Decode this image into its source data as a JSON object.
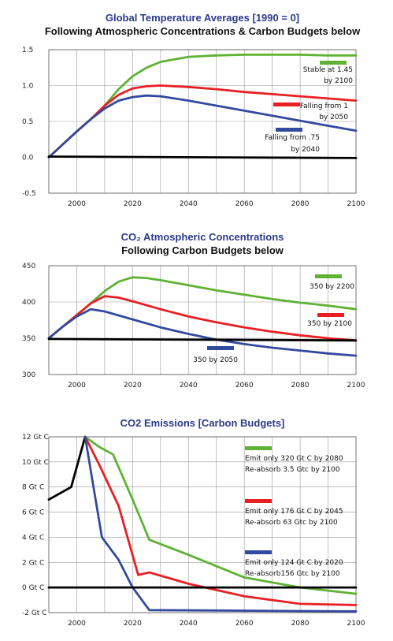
{
  "chart_data": [
    {
      "type": "line",
      "title": "Global Temperature Averages [1990 = 0]",
      "subtitle": "Following Atmospheric Concentrations & Carbon Budgets below",
      "xlim": [
        1990,
        2100
      ],
      "ylim": [
        -0.5,
        1.5
      ],
      "x_ticks": [
        2000,
        2020,
        2040,
        2060,
        2080,
        2100
      ],
      "x_tick_labels": [
        "2000",
        "2020",
        "2040",
        "2060",
        "2080",
        "2100"
      ],
      "y_ticks": [
        1.5,
        1.0,
        0.5,
        0.0,
        -0.5
      ],
      "y_tick_labels": [
        "1.5",
        "1.0",
        "0.5",
        "0.0",
        "-0.5"
      ],
      "grid": true,
      "series": [
        {
          "color": "#5fb233",
          "points": [
            [
              1990,
              0
            ],
            [
              1995,
              0.18
            ],
            [
              2000,
              0.36
            ],
            [
              2005,
              0.53
            ],
            [
              2010,
              0.72
            ],
            [
              2015,
              0.95
            ],
            [
              2020,
              1.13
            ],
            [
              2025,
              1.25
            ],
            [
              2030,
              1.33
            ],
            [
              2040,
              1.4
            ],
            [
              2050,
              1.42
            ],
            [
              2060,
              1.43
            ],
            [
              2070,
              1.43
            ],
            [
              2080,
              1.43
            ],
            [
              2090,
              1.42
            ],
            [
              2100,
              1.42
            ]
          ]
        },
        {
          "color": "#e82024",
          "points": [
            [
              1990,
              0
            ],
            [
              1995,
              0.18
            ],
            [
              2000,
              0.36
            ],
            [
              2005,
              0.53
            ],
            [
              2010,
              0.72
            ],
            [
              2015,
              0.87
            ],
            [
              2020,
              0.96
            ],
            [
              2025,
              0.99
            ],
            [
              2030,
              1.0
            ],
            [
              2040,
              0.98
            ],
            [
              2050,
              0.95
            ],
            [
              2060,
              0.91
            ],
            [
              2070,
              0.88
            ],
            [
              2080,
              0.85
            ],
            [
              2090,
              0.82
            ],
            [
              2100,
              0.79
            ]
          ]
        },
        {
          "color": "#324a9e",
          "points": [
            [
              1990,
              0
            ],
            [
              1995,
              0.18
            ],
            [
              2000,
              0.36
            ],
            [
              2005,
              0.53
            ],
            [
              2010,
              0.68
            ],
            [
              2015,
              0.79
            ],
            [
              2020,
              0.84
            ],
            [
              2025,
              0.86
            ],
            [
              2030,
              0.85
            ],
            [
              2040,
              0.79
            ],
            [
              2050,
              0.72
            ],
            [
              2060,
              0.65
            ],
            [
              2070,
              0.58
            ],
            [
              2080,
              0.51
            ],
            [
              2090,
              0.44
            ],
            [
              2100,
              0.37
            ]
          ]
        },
        {
          "color": "#000000",
          "points": [
            [
              1990,
              0.01
            ],
            [
              2100,
              -0.01
            ]
          ]
        }
      ],
      "annotations": [
        {
          "lines": [
            "Stable at 1.45",
            "by 2100"
          ],
          "color": "#5fb233"
        },
        {
          "lines": [
            "Falling from 1",
            "by 2050"
          ],
          "color": "#e82024"
        },
        {
          "lines": [
            "Falling from .75",
            "by 2040"
          ],
          "color": "#324a9e"
        }
      ]
    },
    {
      "type": "line",
      "title": "CO₂ Atmospheric Concentrations",
      "subtitle": "Following Carbon Budgets below",
      "xlim": [
        1990,
        2100
      ],
      "ylim": [
        300,
        450
      ],
      "x_ticks": [
        2000,
        2020,
        2040,
        2060,
        2080,
        2100
      ],
      "x_tick_labels": [
        "2000",
        "2020",
        "2040",
        "2060",
        "2080",
        "2100"
      ],
      "y_ticks": [
        450,
        400,
        350,
        300
      ],
      "y_tick_labels": [
        "450",
        "400",
        "350",
        "300"
      ],
      "grid": true,
      "series": [
        {
          "color": "#5fb233",
          "points": [
            [
              1990,
              350
            ],
            [
              1995,
              366
            ],
            [
              2000,
              382
            ],
            [
              2005,
              398
            ],
            [
              2010,
              415
            ],
            [
              2015,
              428
            ],
            [
              2020,
              434
            ],
            [
              2025,
              433
            ],
            [
              2030,
              430
            ],
            [
              2040,
              423
            ],
            [
              2050,
              416
            ],
            [
              2060,
              410
            ],
            [
              2070,
              404
            ],
            [
              2080,
              399
            ],
            [
              2090,
              395
            ],
            [
              2100,
              390
            ]
          ]
        },
        {
          "color": "#e82024",
          "points": [
            [
              1990,
              350
            ],
            [
              1995,
              366
            ],
            [
              2000,
              382
            ],
            [
              2005,
              398
            ],
            [
              2010,
              408
            ],
            [
              2015,
              406
            ],
            [
              2020,
              401
            ],
            [
              2030,
              390
            ],
            [
              2040,
              380
            ],
            [
              2050,
              372
            ],
            [
              2060,
              365
            ],
            [
              2070,
              359
            ],
            [
              2080,
              354
            ],
            [
              2090,
              350
            ],
            [
              2100,
              347
            ]
          ]
        },
        {
          "color": "#324a9e",
          "points": [
            [
              1990,
              350
            ],
            [
              1995,
              366
            ],
            [
              2000,
              380
            ],
            [
              2005,
              390
            ],
            [
              2010,
              387
            ],
            [
              2020,
              376
            ],
            [
              2030,
              365
            ],
            [
              2040,
              356
            ],
            [
              2050,
              348
            ],
            [
              2060,
              342
            ],
            [
              2070,
              337
            ],
            [
              2080,
              333
            ],
            [
              2090,
              329
            ],
            [
              2100,
              326
            ]
          ]
        },
        {
          "color": "#000000",
          "points": [
            [
              1990,
              349
            ],
            [
              2100,
              347
            ]
          ]
        }
      ],
      "annotations": [
        {
          "lines": [
            "350 by 2200"
          ],
          "color": "#5fb233"
        },
        {
          "lines": [
            "350 by 2100"
          ],
          "color": "#e82024"
        },
        {
          "lines": [
            "350 by 2050"
          ],
          "color": "#324a9e"
        }
      ]
    },
    {
      "type": "line",
      "title": "CO2 Emissions [Carbon Budgets]",
      "subtitle": "",
      "xlim": [
        1990,
        2100
      ],
      "ylim": [
        -2,
        12
      ],
      "x_ticks": [
        2000,
        2020,
        2040,
        2060,
        2080,
        2100
      ],
      "x_tick_labels": [
        "2000",
        "2020",
        "2040",
        "2060",
        "2080",
        "2100"
      ],
      "y_ticks": [
        12,
        10,
        8,
        6,
        4,
        2,
        0,
        -2
      ],
      "y_tick_labels": [
        "12 Gt C",
        "10 Gt C",
        "8 Gt C",
        "6 Gt C",
        "4 Gt C",
        "2 Gt C",
        "0 Gt C",
        "-2 Gt C"
      ],
      "grid": true,
      "series": [
        {
          "color": "#000000",
          "points": [
            [
              1990,
              7
            ],
            [
              1998,
              8
            ],
            [
              2003,
              12
            ]
          ]
        },
        {
          "color": "#5fb233",
          "points": [
            [
              2003,
              12
            ],
            [
              2008,
              11.2
            ],
            [
              2013,
              10.6
            ],
            [
              2020,
              7
            ],
            [
              2026,
              3.8
            ],
            [
              2040,
              2.6
            ],
            [
              2060,
              0.8
            ],
            [
              2080,
              0
            ],
            [
              2100,
              -0.5
            ]
          ]
        },
        {
          "color": "#e82024",
          "points": [
            [
              2003,
              12
            ],
            [
              2008,
              9.8
            ],
            [
              2015,
              6.5
            ],
            [
              2022,
              1
            ],
            [
              2026,
              1.2
            ],
            [
              2040,
              0.3
            ],
            [
              2060,
              -0.7
            ],
            [
              2080,
              -1.3
            ],
            [
              2100,
              -1.4
            ]
          ]
        },
        {
          "color": "#324a9e",
          "points": [
            [
              2003,
              12
            ],
            [
              2006,
              8
            ],
            [
              2009,
              4
            ],
            [
              2015,
              2.2
            ],
            [
              2020,
              0
            ],
            [
              2026,
              -1.8
            ],
            [
              2100,
              -1.9
            ]
          ]
        },
        {
          "color": "#000000",
          "points": [
            [
              1990,
              0
            ],
            [
              2100,
              0
            ]
          ]
        }
      ],
      "annotations": [
        {
          "lines": [
            "Emit  only 320 Gt C by 2080",
            "Re-absorb 3.5 Gtc by 2100"
          ],
          "color": "#5fb233"
        },
        {
          "lines": [
            "Emit only 176 Gt C by 2045",
            "Re-absorb 63 Gtc by 2100"
          ],
          "color": "#e82024"
        },
        {
          "lines": [
            "Emit only 124 Gt C by 2020",
            "Re-absorb156 Gtc by 2100"
          ],
          "color": "#324a9e"
        }
      ]
    }
  ]
}
